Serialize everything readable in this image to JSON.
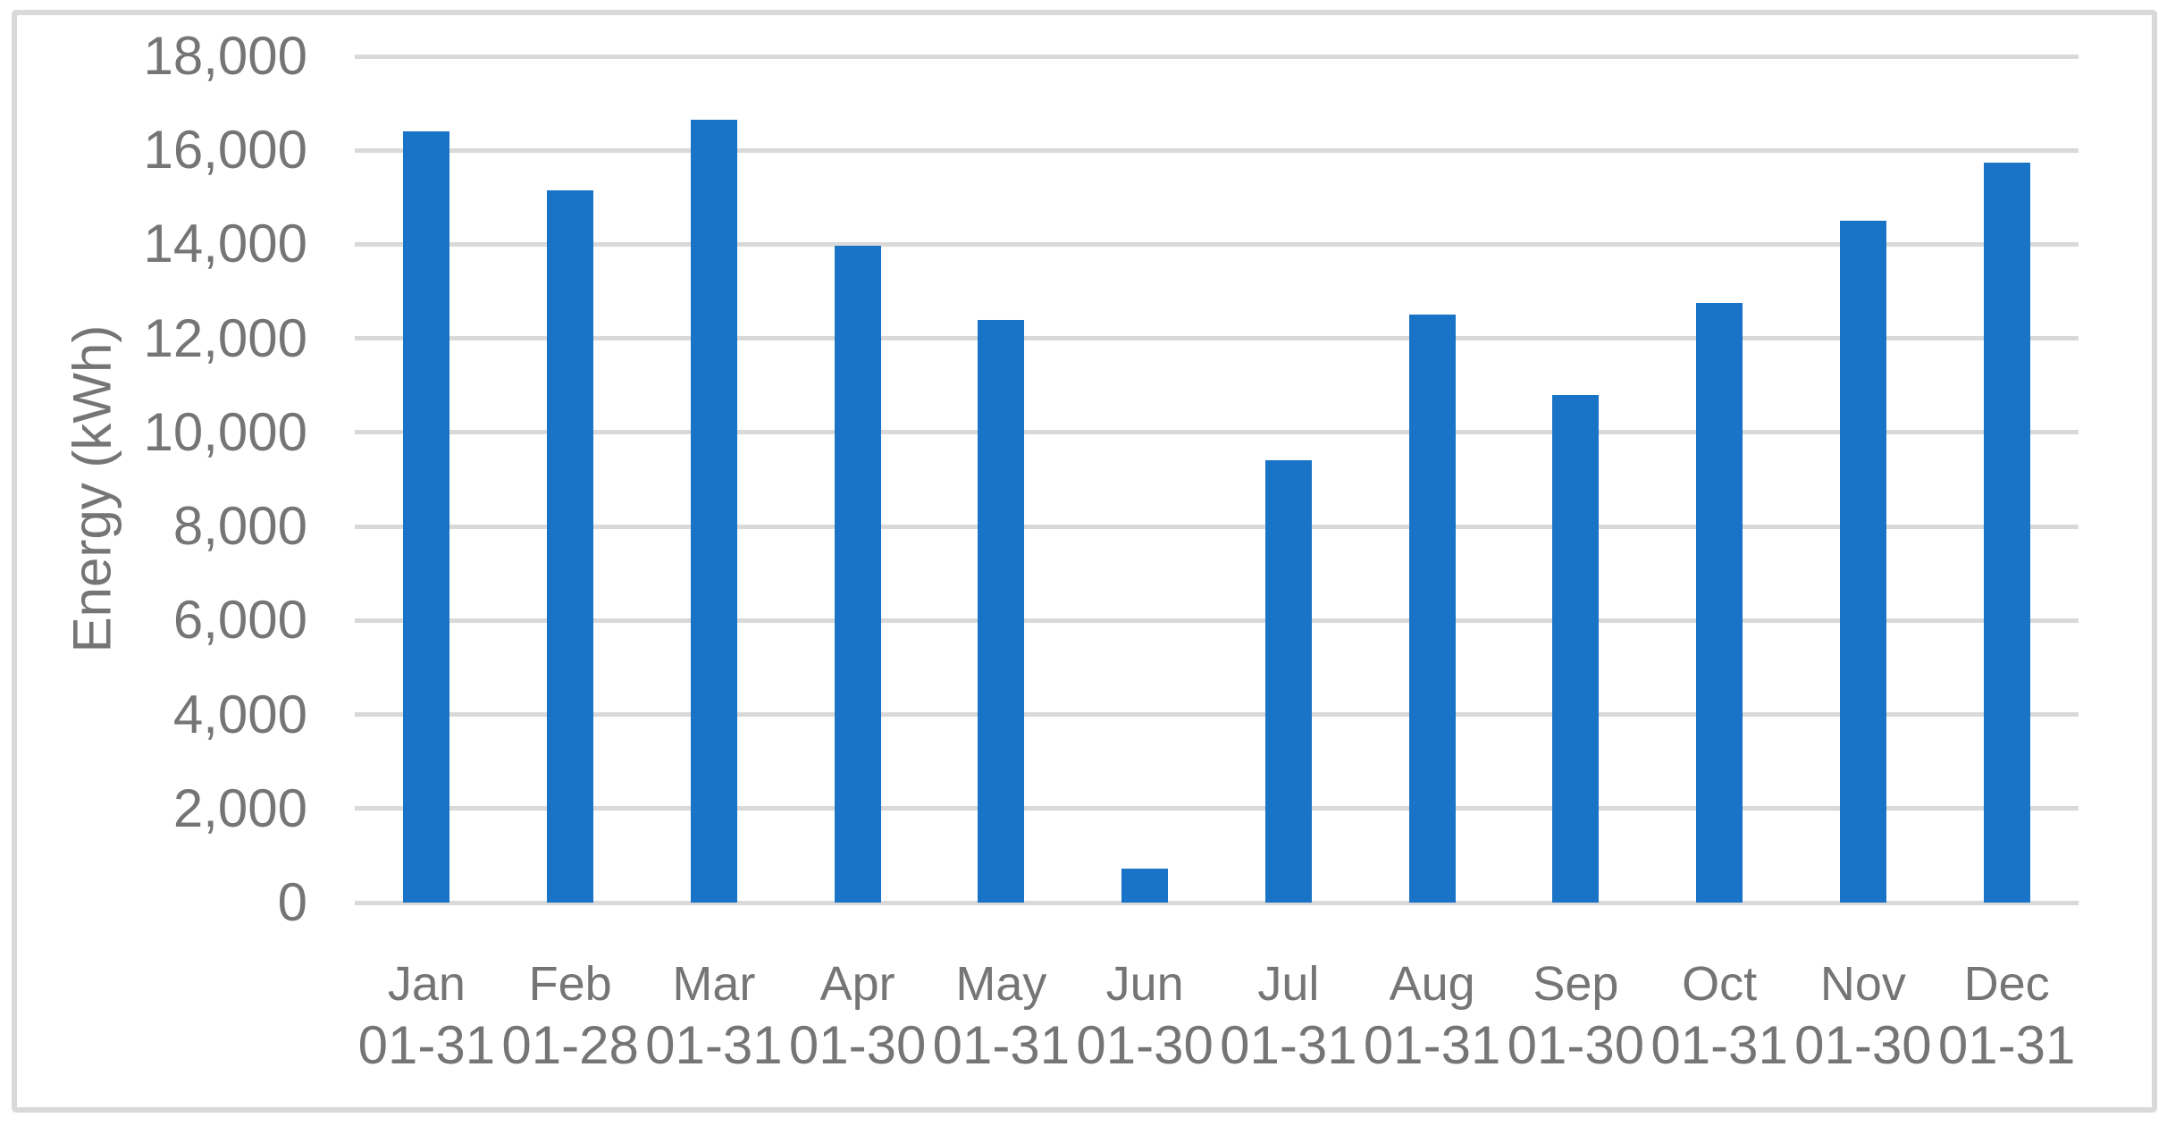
{
  "chart_data": {
    "type": "bar",
    "title": "",
    "ylabel": "Energy (kWh)",
    "xlabel": "",
    "categories": [
      "Jan",
      "Feb",
      "Mar",
      "Apr",
      "May",
      "Jun",
      "Jul",
      "Aug",
      "Sep",
      "Oct",
      "Nov",
      "Dec"
    ],
    "category_sublabels": [
      "01-31",
      "01-28",
      "01-31",
      "01-30",
      "01-31",
      "01-30",
      "01-31",
      "01-31",
      "01-30",
      "01-31",
      "01-30",
      "01-31"
    ],
    "series": [
      {
        "name": "Energy",
        "values": [
          16400,
          15150,
          16650,
          13970,
          12400,
          730,
          9400,
          12500,
          10800,
          12750,
          14500,
          15740
        ]
      }
    ],
    "ylim": [
      0,
      18000
    ],
    "ytick_step": 2000,
    "ytick_labels": [
      "0",
      "2,000",
      "4,000",
      "6,000",
      "8,000",
      "10,000",
      "12,000",
      "14,000",
      "16,000",
      "18,000"
    ],
    "grid": true,
    "legend": "none",
    "colors": {
      "bar": "#1973C6",
      "gridline": "#D9D9D9",
      "axis_text": "#757575",
      "frame_border": "#D9D9D9",
      "background": "#FFFFFF"
    }
  }
}
